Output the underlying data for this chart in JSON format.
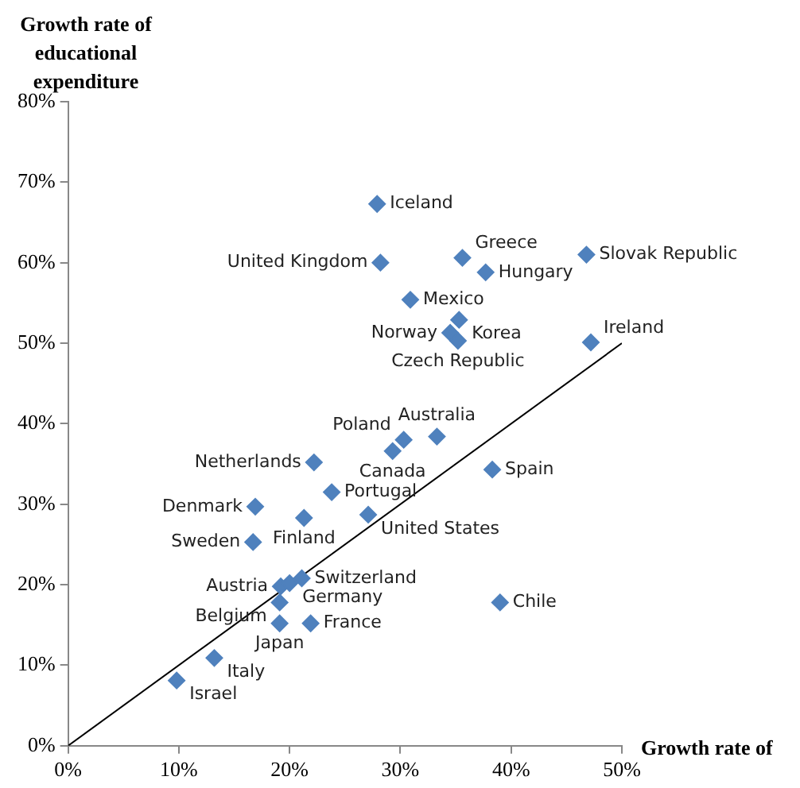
{
  "chart_data": {
    "type": "scatter",
    "xlabel": "Growth rate of",
    "ylabel": "Growth rate of educational expenditure",
    "xlim": [
      0,
      50
    ],
    "ylim": [
      0,
      80
    ],
    "xticks": [
      {
        "value": 0,
        "label": "0%"
      },
      {
        "value": 10,
        "label": "10%"
      },
      {
        "value": 20,
        "label": "20%"
      },
      {
        "value": 30,
        "label": "30%"
      },
      {
        "value": 40,
        "label": "40%"
      },
      {
        "value": 50,
        "label": "50%"
      }
    ],
    "yticks": [
      {
        "value": 0,
        "label": "0%"
      },
      {
        "value": 10,
        "label": "10%"
      },
      {
        "value": 20,
        "label": "20%"
      },
      {
        "value": 30,
        "label": "30%"
      },
      {
        "value": 40,
        "label": "40%"
      },
      {
        "value": 50,
        "label": "50%"
      },
      {
        "value": 60,
        "label": "60%"
      },
      {
        "value": 70,
        "label": "70%"
      },
      {
        "value": 80,
        "label": "80%"
      }
    ],
    "grid": false,
    "legend": false,
    "marker": "diamond",
    "series": [
      {
        "color": "#4f81bd",
        "x": [
          27.9,
          28.2,
          35.6,
          46.8,
          37.7,
          30.9,
          35.3,
          34.5,
          35.2,
          47.2,
          33.3,
          30.3,
          29.3,
          22.2,
          38.3,
          23.8,
          16.9,
          21.3,
          27.1,
          16.7,
          21.1,
          19.2,
          20.0,
          19.1,
          39.0,
          19.1,
          21.9,
          13.2,
          9.8
        ],
        "values": [
          67.3,
          60.0,
          60.6,
          61.0,
          58.8,
          55.4,
          52.9,
          51.3,
          50.3,
          50.1,
          38.4,
          38.0,
          36.6,
          35.2,
          34.3,
          31.5,
          29.7,
          28.3,
          28.7,
          25.3,
          20.8,
          19.8,
          20.2,
          17.8,
          17.8,
          15.2,
          15.2,
          10.9,
          8.1
        ]
      },
      {
        "type": "line",
        "color": "#000000",
        "marker": "none",
        "x": [
          0,
          50
        ],
        "values": [
          0,
          50
        ]
      }
    ],
    "annotations": [
      {
        "text": "Iceland",
        "x": 27.9,
        "y": 67.3
      },
      {
        "text": "United Kingdom",
        "x": 28.2,
        "y": 60.0
      },
      {
        "text": "Greece",
        "x": 35.6,
        "y": 60.6
      },
      {
        "text": "Slovak Republic",
        "x": 46.8,
        "y": 61.0
      },
      {
        "text": "Hungary",
        "x": 37.7,
        "y": 58.8
      },
      {
        "text": "Mexico",
        "x": 30.9,
        "y": 55.4
      },
      {
        "text": "Korea",
        "x": 35.3,
        "y": 52.9
      },
      {
        "text": "Norway",
        "x": 34.5,
        "y": 51.3
      },
      {
        "text": "Czech Republic",
        "x": 35.2,
        "y": 50.3
      },
      {
        "text": "Ireland",
        "x": 47.2,
        "y": 50.1
      },
      {
        "text": "Australia",
        "x": 33.3,
        "y": 38.4
      },
      {
        "text": "Poland",
        "x": 30.3,
        "y": 38.0
      },
      {
        "text": "Canada",
        "x": 29.3,
        "y": 36.6
      },
      {
        "text": "Netherlands",
        "x": 22.2,
        "y": 35.2
      },
      {
        "text": "Spain",
        "x": 38.3,
        "y": 34.3
      },
      {
        "text": "Portugal",
        "x": 23.8,
        "y": 31.5
      },
      {
        "text": "Denmark",
        "x": 16.9,
        "y": 29.7
      },
      {
        "text": "Finland",
        "x": 21.3,
        "y": 28.3
      },
      {
        "text": "United States",
        "x": 27.1,
        "y": 28.7
      },
      {
        "text": "Sweden",
        "x": 16.7,
        "y": 25.3
      },
      {
        "text": "Switzerland",
        "x": 21.1,
        "y": 20.8
      },
      {
        "text": "Austria",
        "x": 19.2,
        "y": 19.8
      },
      {
        "text": "Germany",
        "x": 20.0,
        "y": 20.2
      },
      {
        "text": "Belgium",
        "x": 19.1,
        "y": 17.8
      },
      {
        "text": "Chile",
        "x": 39.0,
        "y": 17.8
      },
      {
        "text": "Japan",
        "x": 19.1,
        "y": 15.2
      },
      {
        "text": "France",
        "x": 21.9,
        "y": 15.2
      },
      {
        "text": "Italy",
        "x": 13.2,
        "y": 10.9
      },
      {
        "text": "Israel",
        "x": 9.8,
        "y": 8.1
      }
    ]
  }
}
